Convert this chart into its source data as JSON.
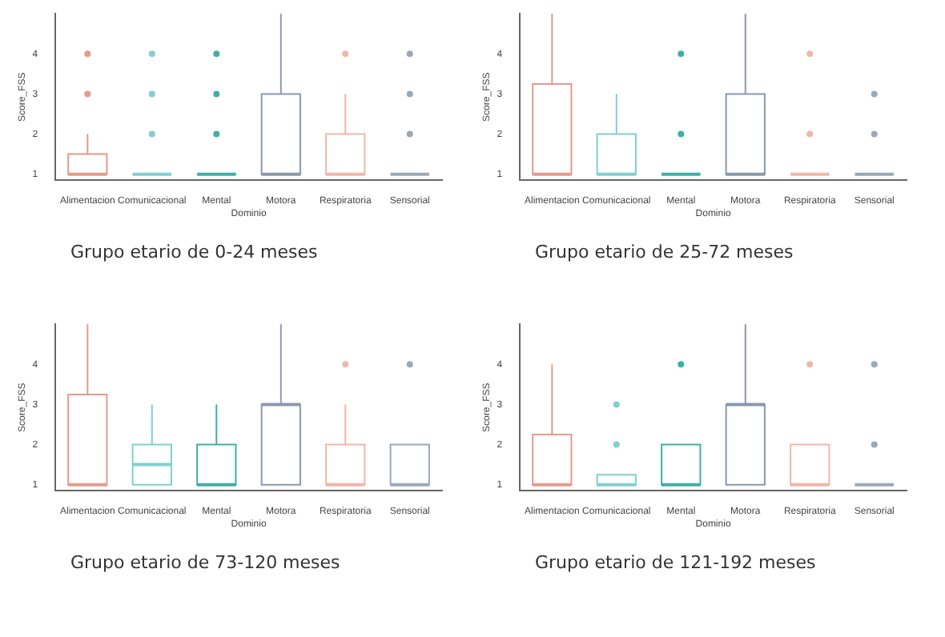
{
  "chart_data": [
    {
      "type": "box",
      "xlabel": "Dominio",
      "ylabel": "Score_FSS",
      "categories": [
        "Alimentacion",
        "Comunicacional",
        "Mental",
        "Motora",
        "Respiratoria",
        "Sensorial"
      ],
      "colors": [
        "#e59a8c",
        "#7fd0d2",
        "#3fb0a6",
        "#8a97ad",
        "#f2b6a8",
        "#9aa8b8"
      ],
      "ylim": [
        0.85,
        5
      ],
      "yticks": [
        1,
        2,
        3,
        4
      ],
      "grid": false,
      "annotations": [
        "Grupo etario de 0-24 meses"
      ],
      "boxes": [
        {
          "low": 1,
          "q1": 1,
          "median": 1,
          "q3": 1.5,
          "high": 2,
          "outliers": [
            3,
            4
          ]
        },
        {
          "low": 1,
          "q1": 1,
          "median": 1,
          "q3": 1,
          "high": 1,
          "outliers": [
            2,
            3,
            4
          ]
        },
        {
          "low": 1,
          "q1": 1,
          "median": 1,
          "q3": 1,
          "high": 1,
          "outliers": [
            2,
            3,
            4
          ]
        },
        {
          "low": 1,
          "q1": 1,
          "median": 1,
          "q3": 3,
          "high": 5
        },
        {
          "low": 1,
          "q1": 1,
          "median": 1,
          "q3": 2,
          "high": 3,
          "outliers": [
            4
          ]
        },
        {
          "low": 1,
          "q1": 1,
          "median": 1,
          "q3": 1,
          "high": 1,
          "outliers": [
            2,
            3,
            4
          ]
        }
      ]
    },
    {
      "type": "box",
      "xlabel": "Dominio",
      "ylabel": "Score_FSS",
      "categories": [
        "Alimentacion",
        "Comunicacional",
        "Mental",
        "Motora",
        "Respiratoria",
        "Sensorial"
      ],
      "colors": [
        "#e59a8c",
        "#7fd0d2",
        "#3fb0a6",
        "#8a97ad",
        "#f2b6a8",
        "#9aa8b8"
      ],
      "ylim": [
        0.85,
        5
      ],
      "yticks": [
        1,
        2,
        3,
        4
      ],
      "grid": false,
      "annotations": [
        "Grupo etario de 25-72 meses"
      ],
      "boxes": [
        {
          "low": 1,
          "q1": 1,
          "median": 1,
          "q3": 3.25,
          "high": 5
        },
        {
          "low": 1,
          "q1": 1,
          "median": 1,
          "q3": 2,
          "high": 3
        },
        {
          "low": 1,
          "q1": 1,
          "median": 1,
          "q3": 1,
          "high": 1,
          "outliers": [
            2,
            4
          ]
        },
        {
          "low": 1,
          "q1": 1,
          "median": 1,
          "q3": 3,
          "high": 5
        },
        {
          "low": 1,
          "q1": 1,
          "median": 1,
          "q3": 1,
          "high": 1,
          "outliers": [
            2,
            4
          ]
        },
        {
          "low": 1,
          "q1": 1,
          "median": 1,
          "q3": 1,
          "high": 1,
          "outliers": [
            2,
            3
          ]
        }
      ]
    },
    {
      "type": "box",
      "xlabel": "Dominio",
      "ylabel": "Score_FSS",
      "categories": [
        "Alimentacion",
        "Comunicacional",
        "Mental",
        "Motora",
        "Respiratoria",
        "Sensorial"
      ],
      "colors": [
        "#e59a8c",
        "#7fd0d2",
        "#3fb0a6",
        "#8a97ad",
        "#f2b6a8",
        "#9aa8b8"
      ],
      "ylim": [
        0.85,
        5
      ],
      "yticks": [
        1,
        2,
        3,
        4
      ],
      "grid": false,
      "annotations": [
        "Grupo etario de 73-120 meses"
      ],
      "boxes": [
        {
          "low": 1,
          "q1": 1,
          "median": 1,
          "q3": 3.25,
          "high": 5
        },
        {
          "low": 1,
          "q1": 1,
          "median": 1.5,
          "q3": 2,
          "high": 3
        },
        {
          "low": 1,
          "q1": 1,
          "median": 1,
          "q3": 2,
          "high": 3
        },
        {
          "low": 1,
          "q1": 1,
          "median": 3,
          "q3": 3,
          "high": 5
        },
        {
          "low": 1,
          "q1": 1,
          "median": 1,
          "q3": 2,
          "high": 3,
          "outliers": [
            4
          ]
        },
        {
          "low": 1,
          "q1": 1,
          "median": 1,
          "q3": 2,
          "high": 2,
          "outliers": [
            4
          ]
        }
      ]
    },
    {
      "type": "box",
      "xlabel": "Dominio",
      "ylabel": "Score_FSS",
      "categories": [
        "Alimentacion",
        "Comunicacional",
        "Mental",
        "Motora",
        "Respiratoria",
        "Sensorial"
      ],
      "colors": [
        "#e59a8c",
        "#7fd0d2",
        "#3fb0a6",
        "#8a97ad",
        "#f2b6a8",
        "#9aa8b8"
      ],
      "ylim": [
        0.85,
        5
      ],
      "yticks": [
        1,
        2,
        3,
        4
      ],
      "grid": false,
      "annotations": [
        "Grupo etario de 121-192 meses"
      ],
      "boxes": [
        {
          "low": 1,
          "q1": 1,
          "median": 1,
          "q3": 2.25,
          "high": 4
        },
        {
          "low": 1,
          "q1": 1,
          "median": 1,
          "q3": 1.25,
          "high": 1.25,
          "outliers": [
            2,
            3
          ]
        },
        {
          "low": 1,
          "q1": 1,
          "median": 1,
          "q3": 2,
          "high": 2,
          "outliers": [
            4
          ]
        },
        {
          "low": 1,
          "q1": 1,
          "median": 3,
          "q3": 3,
          "high": 5
        },
        {
          "low": 1,
          "q1": 1,
          "median": 1,
          "q3": 2,
          "high": 2,
          "outliers": [
            4
          ]
        },
        {
          "low": 1,
          "q1": 1,
          "median": 1,
          "q3": 1,
          "high": 1,
          "outliers": [
            2,
            4
          ]
        }
      ]
    }
  ]
}
